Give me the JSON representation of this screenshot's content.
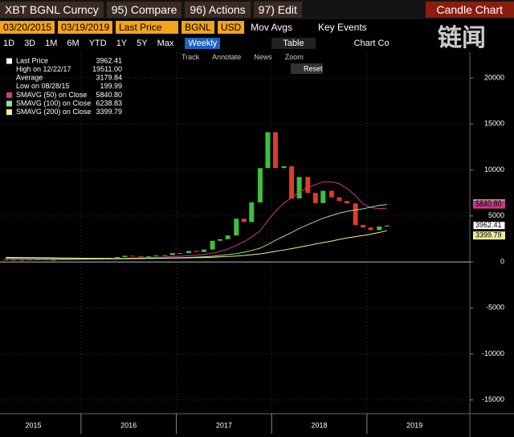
{
  "toolbar": {
    "security": "XBT BGNL Curncy",
    "compare": "95) Compare",
    "actions": "96) Actions",
    "edit": "97) Edit",
    "chart_type": "Candle Chart"
  },
  "controls": {
    "start_date": "03/20/2015",
    "end_date": "03/19/2019",
    "field": "Last Price",
    "source": "BGNL",
    "currency": "USD",
    "mov_avgs": "Mov Avgs",
    "key_events": "Key Events",
    "periods": [
      "1D",
      "3D",
      "1M",
      "6M",
      "YTD",
      "1Y",
      "5Y",
      "Max"
    ],
    "frequency": "Weekly",
    "table": "Table",
    "chart_controls": "Chart Co"
  },
  "tools": [
    "Track",
    "Annotate",
    "News",
    "Zoom"
  ],
  "reset": "Reset",
  "watermark": "链闻",
  "legend": [
    {
      "label": "Last Price",
      "value": "3962.41",
      "color": "#ffffff"
    },
    {
      "label": "High on 12/22/17",
      "value": "19511.00"
    },
    {
      "label": "Average",
      "value": "3179.84"
    },
    {
      "label": "Low on 08/28/15",
      "value": "199.99"
    },
    {
      "label": "SMAVG (50)  on Close",
      "value": "5840.80",
      "color": "#d0358a"
    },
    {
      "label": "SMAVG (100)  on Close",
      "value": "6238.83",
      "color": "#8fe88f"
    },
    {
      "label": "SMAVG (200)  on Close",
      "value": "3399.79",
      "color": "#eeee99"
    }
  ],
  "chart_data": {
    "type": "candlestick",
    "up_color": "#3fbf3f",
    "down_color": "#e03a2a",
    "x": [
      2015.21,
      2015.29,
      2015.38,
      2015.46,
      2015.54,
      2015.63,
      2015.71,
      2015.79,
      2015.88,
      2015.96,
      2016.04,
      2016.13,
      2016.21,
      2016.29,
      2016.38,
      2016.46,
      2016.54,
      2016.63,
      2016.71,
      2016.79,
      2016.88,
      2016.96,
      2017.04,
      2017.13,
      2017.21,
      2017.29,
      2017.38,
      2017.46,
      2017.54,
      2017.63,
      2017.71,
      2017.79,
      2017.88,
      2017.96,
      2018.04,
      2018.13,
      2018.21,
      2018.29,
      2018.38,
      2018.46,
      2018.54,
      2018.63,
      2018.71,
      2018.79,
      2018.88,
      2018.96,
      2019.04,
      2019.13,
      2019.21
    ],
    "open": [
      255,
      245,
      236,
      230,
      263,
      284,
      230,
      236,
      314,
      377,
      430,
      368,
      437,
      416,
      448,
      531,
      673,
      624,
      573,
      609,
      700,
      742,
      963,
      970,
      1190,
      1080,
      1350,
      2300,
      2480,
      2875,
      4700,
      4340,
      6470,
      10200,
      14100,
      10200,
      10400,
      6900,
      9240,
      7500,
      6400,
      7730,
      7030,
      6630,
      6370,
      4020,
      3740,
      3460,
      3850
    ],
    "close": [
      245,
      236,
      230,
      263,
      284,
      230,
      236,
      314,
      377,
      430,
      368,
      437,
      416,
      448,
      531,
      673,
      624,
      573,
      609,
      700,
      742,
      963,
      970,
      1190,
      1080,
      1350,
      2300,
      2480,
      2875,
      4700,
      4340,
      6470,
      10200,
      14100,
      10200,
      10400,
      6900,
      9240,
      7500,
      6400,
      7730,
      7030,
      6630,
      6370,
      4020,
      3740,
      3460,
      3850,
      3962.41
    ],
    "series": [
      {
        "color": "#d0358a",
        "values": [
          280,
          270,
          260,
          255,
          255,
          250,
          245,
          250,
          260,
          275,
          285,
          300,
          315,
          330,
          350,
          380,
          410,
          440,
          470,
          500,
          530,
          580,
          620,
          680,
          740,
          820,
          950,
          1150,
          1400,
          1800,
          2200,
          2700,
          3400,
          4500,
          5500,
          6400,
          7000,
          7600,
          8100,
          8400,
          8700,
          8700,
          8500,
          8000,
          7200,
          6300,
          5900,
          5800,
          5840.8
        ]
      },
      {
        "color": "#8fe88f",
        "values": [
          400,
          390,
          380,
          370,
          360,
          350,
          340,
          330,
          320,
          320,
          320,
          320,
          325,
          330,
          335,
          345,
          355,
          370,
          385,
          400,
          420,
          440,
          460,
          490,
          520,
          560,
          620,
          700,
          790,
          900,
          1050,
          1250,
          1500,
          1900,
          2350,
          2800,
          3200,
          3650,
          4050,
          4400,
          4750,
          5050,
          5300,
          5500,
          5650,
          5780,
          5950,
          6150,
          6238.83
        ]
      },
      {
        "color": "#eeee99",
        "values": [
          500,
          490,
          480,
          470,
          460,
          450,
          440,
          430,
          420,
          410,
          400,
          390,
          385,
          380,
          380,
          380,
          385,
          390,
          395,
          400,
          410,
          420,
          430,
          440,
          460,
          480,
          510,
          550,
          590,
          640,
          700,
          780,
          880,
          1000,
          1150,
          1300,
          1450,
          1600,
          1780,
          1950,
          2100,
          2270,
          2450,
          2600,
          2750,
          2880,
          3020,
          3200,
          3399.79
        ]
      }
    ],
    "xlim": [
      2015.15,
      2020.08
    ],
    "ylim": [
      -16500,
      22800
    ],
    "yticks": [
      20000,
      15000,
      10000,
      5000,
      0,
      -5000,
      -10000,
      -15000
    ],
    "xticks": [
      2015,
      2016,
      2017,
      2018,
      2019
    ]
  }
}
